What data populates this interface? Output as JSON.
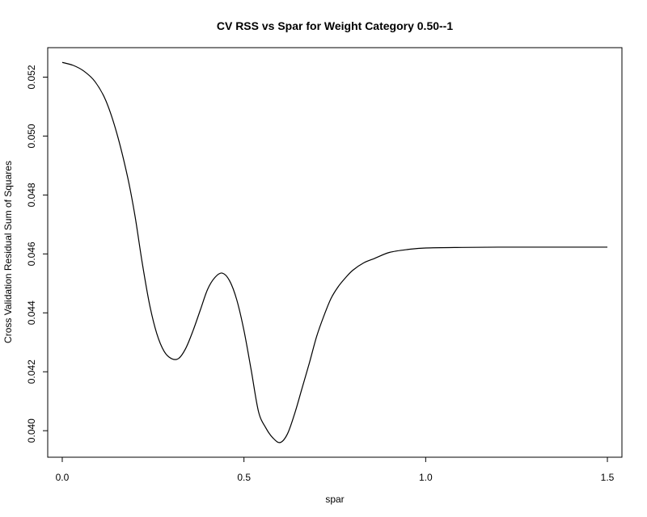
{
  "chart_data": {
    "type": "line",
    "title": "CV RSS vs Spar for Weight Category 0.50--1",
    "xlabel": "spar",
    "ylabel": "Cross Validation Residual Sum of Squares",
    "xlim": [
      -0.04,
      1.54
    ],
    "ylim": [
      0.0391,
      0.053
    ],
    "x_ticks": [
      0.0,
      0.5,
      1.0,
      1.5
    ],
    "x_tick_labels": [
      "0.0",
      "0.5",
      "1.0",
      "1.5"
    ],
    "y_ticks": [
      0.04,
      0.042,
      0.044,
      0.046,
      0.048,
      0.05,
      0.052
    ],
    "y_tick_labels": [
      "0.040",
      "0.042",
      "0.044",
      "0.046",
      "0.048",
      "0.050",
      "0.052"
    ],
    "grid": false,
    "series": [
      {
        "x": [
          0.0,
          0.03,
          0.06,
          0.09,
          0.12,
          0.15,
          0.18,
          0.2,
          0.22,
          0.24,
          0.26,
          0.28,
          0.3,
          0.32,
          0.34,
          0.36,
          0.38,
          0.4,
          0.42,
          0.44,
          0.46,
          0.48,
          0.5,
          0.52,
          0.54,
          0.56,
          0.58,
          0.6,
          0.62,
          0.64,
          0.66,
          0.68,
          0.7,
          0.72,
          0.74,
          0.76,
          0.78,
          0.8,
          0.83,
          0.86,
          0.9,
          0.95,
          1.0,
          1.1,
          1.2,
          1.3,
          1.4,
          1.5
        ],
        "y": [
          0.0525,
          0.0524,
          0.0522,
          0.05185,
          0.0512,
          0.0501,
          0.0486,
          0.0473,
          0.0457,
          0.0443,
          0.0433,
          0.0427,
          0.04245,
          0.04245,
          0.0428,
          0.0434,
          0.0441,
          0.0448,
          0.0452,
          0.04535,
          0.0451,
          0.04445,
          0.0434,
          0.04205,
          0.04065,
          0.0401,
          0.03975,
          0.0396,
          0.0399,
          0.0406,
          0.04145,
          0.0423,
          0.0432,
          0.0439,
          0.0445,
          0.0449,
          0.0452,
          0.04545,
          0.0457,
          0.04585,
          0.04605,
          0.04615,
          0.0462,
          0.04622,
          0.04623,
          0.04623,
          0.04623,
          0.04623
        ]
      }
    ]
  }
}
